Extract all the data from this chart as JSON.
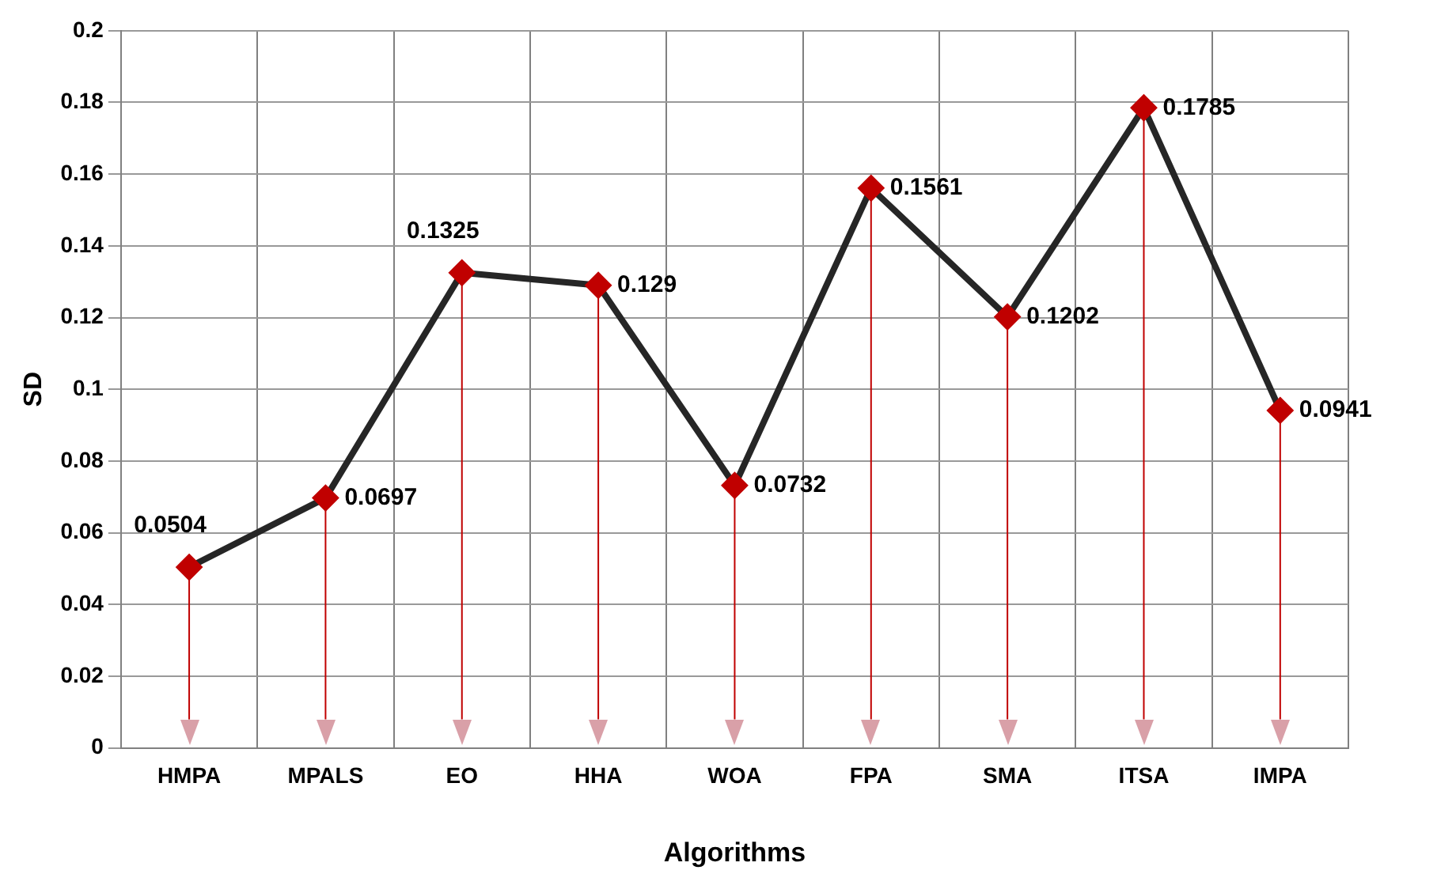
{
  "chart_data": {
    "type": "line",
    "xlabel": "Algorithms",
    "ylabel": "SD",
    "categories": [
      "HMPA",
      "MPALS",
      "EO",
      "HHA",
      "WOA",
      "FPA",
      "SMA",
      "ITSA",
      "IMPA"
    ],
    "series": [
      {
        "color": "#262626",
        "colors": [
          "#c00000",
          "#c00000",
          "#c00000",
          "#c00000",
          "#c00000",
          "#c00000",
          "#c00000",
          "#c00000",
          "#c00000"
        ],
        "values": [
          0.0504,
          0.0697,
          0.1325,
          0.129,
          0.0732,
          0.1561,
          0.1202,
          0.1785,
          0.0941
        ]
      }
    ],
    "ylim": [
      0,
      0.2
    ],
    "yticks": [
      0,
      0.02,
      0.04,
      0.06,
      0.08,
      0.1,
      0.12,
      0.14,
      0.16,
      0.18,
      0.2
    ],
    "grid": true,
    "marker": "diamond",
    "line_style": "solid",
    "data_labels": true,
    "legend": false
  }
}
